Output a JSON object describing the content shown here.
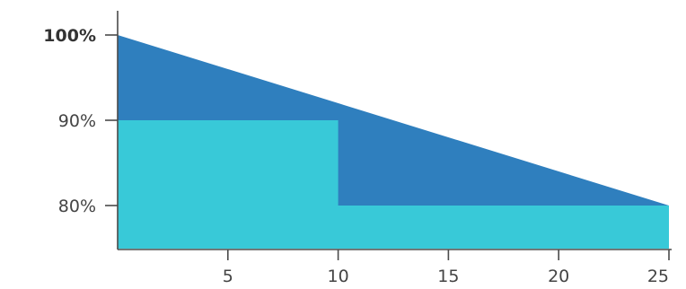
{
  "chart_data": {
    "type": "area",
    "x_range": [
      0,
      25
    ],
    "y_range": [
      77,
      102
    ],
    "x_ticks": [
      {
        "value": 5,
        "label": "5"
      },
      {
        "value": 10,
        "label": "10"
      },
      {
        "value": 15,
        "label": "15"
      },
      {
        "value": 20,
        "label": "20"
      },
      {
        "value": 25,
        "label": "25"
      }
    ],
    "y_ticks": [
      {
        "value": 80,
        "label": "80%",
        "bold": false
      },
      {
        "value": 90,
        "label": "90%",
        "bold": false
      },
      {
        "value": 100,
        "label": "100%",
        "bold": true
      }
    ],
    "series": [
      {
        "color": "#2f7fbe",
        "points": [
          [
            0,
            100
          ],
          [
            25,
            80
          ]
        ]
      },
      {
        "color": "#38c9d8",
        "points": [
          [
            0,
            90
          ],
          [
            10,
            90
          ],
          [
            10,
            80
          ],
          [
            25,
            80
          ]
        ]
      }
    ],
    "grid": false,
    "title": "",
    "xlabel": "",
    "ylabel": ""
  }
}
